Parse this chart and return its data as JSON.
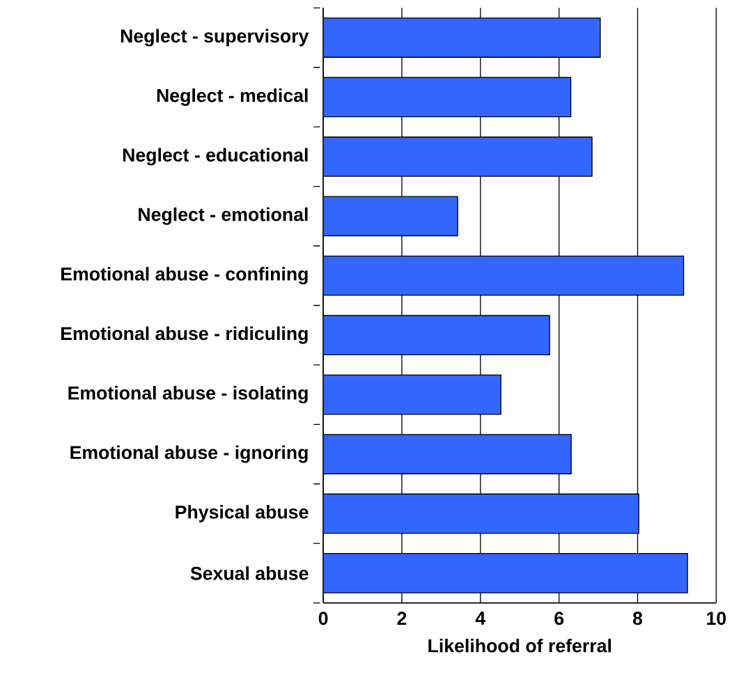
{
  "chart_data": {
    "type": "bar",
    "orientation": "horizontal",
    "xlabel": "Likelihood of referral",
    "categories": [
      "Neglect - supervisory",
      "Neglect - medical",
      "Neglect - educational",
      "Neglect - emotional",
      "Emotional abuse - confining",
      "Emotional abuse - ridiculing",
      "Emotional abuse - isolating",
      "Emotional abuse - ignoring",
      "Physical abuse",
      "Sexual abuse"
    ],
    "values": [
      7.05,
      6.3,
      6.84,
      3.42,
      9.17,
      5.76,
      4.52,
      6.31,
      8.03,
      9.27
    ],
    "color": "#3366ff",
    "xlim": [
      0,
      10
    ],
    "xticks": [
      0,
      2,
      4,
      6,
      8,
      10
    ],
    "grid": "x"
  }
}
